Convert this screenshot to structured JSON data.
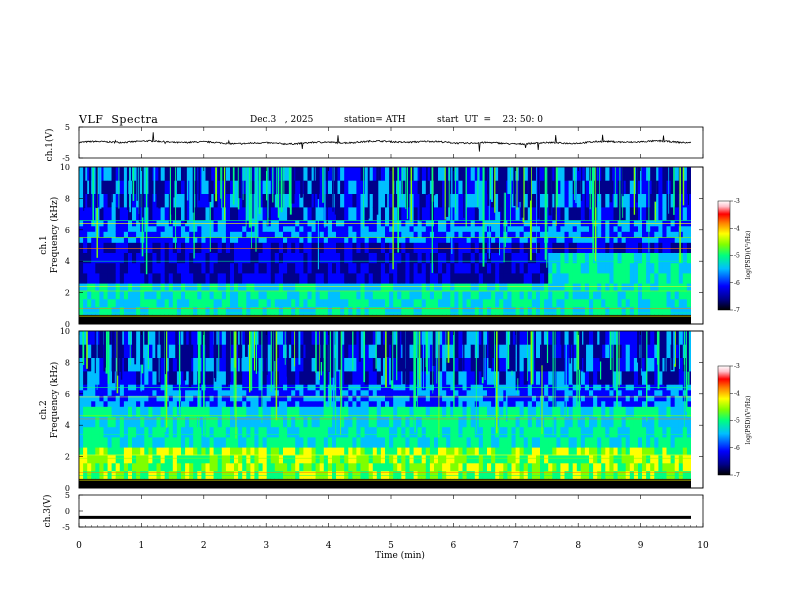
{
  "header": {
    "title": "VLF  Spectra",
    "date": "Dec.3   , 2025",
    "station": "station= ATH",
    "start": "start  UT  =    23: 50: 0"
  },
  "colors": {
    "spectrogram_scale": [
      "#000000",
      "#00008b",
      "#0000ff",
      "#00bfff",
      "#00ff7f",
      "#7fff00",
      "#ffff00",
      "#ff7f00",
      "#ff0000",
      "#ffc0cb",
      "#ffffff"
    ],
    "trace": "#000000"
  },
  "chart_data": [
    {
      "type": "line",
      "title": "",
      "ylabel": "ch.1(V)",
      "ylim": [
        -5,
        5
      ],
      "yticks": [
        "5",
        "-5"
      ],
      "series": [
        {
          "description_values": "noisy waveform near 0 V with sporadic spikes",
          "baseline": 0
        }
      ]
    },
    {
      "type": "heatmap",
      "ylabel_line1": "ch.1",
      "ylabel_line2": "Frequency  (kHz)",
      "ylim": [
        0,
        10
      ],
      "yticks": [
        "0",
        "2",
        "4",
        "6",
        "8",
        "10"
      ],
      "colorbar": {
        "label": "log(PSD)(V²/Hz)",
        "ticks": [
          "-3",
          "-4",
          "-5",
          "-6",
          "-7"
        ],
        "range": [
          -7,
          -3
        ]
      }
    },
    {
      "type": "heatmap",
      "ylabel_line1": "ch.2",
      "ylabel_line2": "Frequency  (kHz)",
      "ylim": [
        0,
        10
      ],
      "yticks": [
        "0",
        "2",
        "4",
        "6",
        "8",
        "10"
      ],
      "colorbar": {
        "label": "log(PSD)(V²/Hz)",
        "ticks": [
          "-3",
          "-4",
          "-5",
          "-6",
          "-7"
        ],
        "range": [
          -7,
          -3
        ]
      }
    },
    {
      "type": "line",
      "ylabel": "ch.3(V)",
      "ylim": [
        -5,
        5
      ],
      "yticks": [
        "5",
        "0",
        "-5"
      ],
      "series": [
        {
          "baseline": -2
        }
      ]
    }
  ],
  "xaxis": {
    "label": "Time  (min)",
    "range": [
      0,
      10
    ],
    "ticks": [
      "0",
      "1",
      "2",
      "3",
      "4",
      "5",
      "6",
      "7",
      "8",
      "9",
      "10"
    ]
  }
}
